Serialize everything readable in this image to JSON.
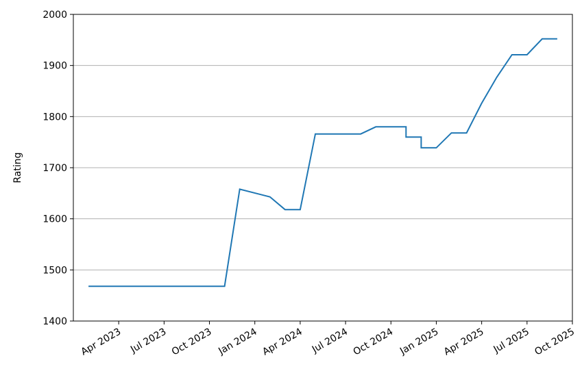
{
  "chart_data": {
    "type": "line",
    "ylabel": "Rating",
    "x": [
      "2023-02",
      "2023-11",
      "2023-12",
      "2024-02",
      "2024-03",
      "2024-04",
      "2024-05",
      "2024-08",
      "2024-09",
      "2024-11",
      "2024-11",
      "2024-12",
      "2024-12",
      "2025-01",
      "2025-02",
      "2025-03",
      "2025-04",
      "2025-05",
      "2025-06",
      "2025-07",
      "2025-08",
      "2025-09"
    ],
    "series": [
      {
        "name": "Rating",
        "color": "#1f77b4",
        "values": [
          1468,
          1468,
          1658,
          1643,
          1618,
          1618,
          1766,
          1766,
          1780,
          1780,
          1760,
          1760,
          1739,
          1739,
          1768,
          1768,
          1826,
          1877,
          1921,
          1921,
          1952,
          1952
        ]
      }
    ],
    "xlim": [
      "2023-01",
      "2025-10"
    ],
    "xticks": [
      {
        "value": "2023-04",
        "label": "Apr 2023"
      },
      {
        "value": "2023-07",
        "label": "Jul 2023"
      },
      {
        "value": "2023-10",
        "label": "Oct 2023"
      },
      {
        "value": "2024-01",
        "label": "Jan 2024"
      },
      {
        "value": "2024-04",
        "label": "Apr 2024"
      },
      {
        "value": "2024-07",
        "label": "Jul 2024"
      },
      {
        "value": "2024-10",
        "label": "Oct 2024"
      },
      {
        "value": "2025-01",
        "label": "Jan 2025"
      },
      {
        "value": "2025-04",
        "label": "Apr 2025"
      },
      {
        "value": "2025-07",
        "label": "Jul 2025"
      },
      {
        "value": "2025-10",
        "label": "Oct 2025"
      }
    ],
    "ylim": [
      1400,
      2000
    ],
    "yticks": [
      1400,
      1500,
      1600,
      1700,
      1800,
      1900,
      2000
    ],
    "grid": "y"
  }
}
